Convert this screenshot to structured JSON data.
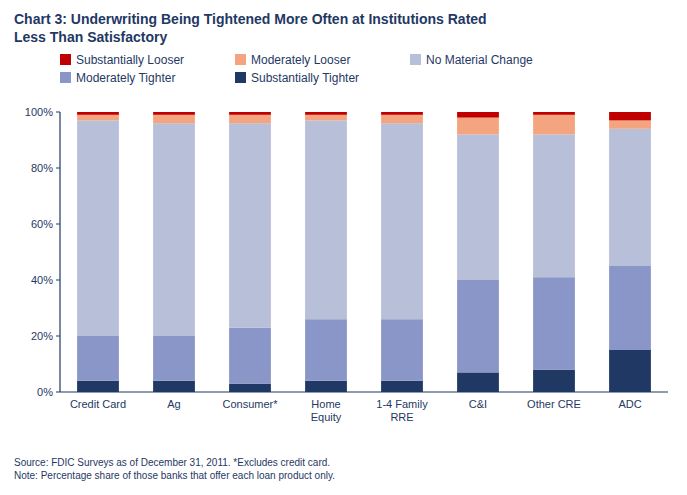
{
  "chart_data": {
    "type": "bar",
    "stacked": true,
    "title": "Chart 3:  Underwriting Being Tightened More Often at Institutions Rated\nLess Than Satisfactory",
    "categories": [
      "Credit Card",
      "Ag",
      "Consumer*",
      "Home\nEquity",
      "1-4 Family\nRRE",
      "C&I",
      "Other CRE",
      "ADC"
    ],
    "series": [
      {
        "name": "Substantially Looser",
        "color": "#c00000",
        "values": [
          1,
          1,
          1,
          1,
          1,
          2,
          1,
          3
        ]
      },
      {
        "name": "Moderately Looser",
        "color": "#f4a580",
        "values": [
          2,
          3,
          3,
          2,
          3,
          6,
          7,
          3
        ]
      },
      {
        "name": "No Material Change",
        "color": "#b8bfd8",
        "values": [
          77,
          76,
          73,
          71,
          70,
          52,
          51,
          49
        ]
      },
      {
        "name": "Moderately Tighter",
        "color": "#8b96c8",
        "values": [
          16,
          16,
          20,
          22,
          22,
          33,
          33,
          30
        ]
      },
      {
        "name": "Substantially Tighter",
        "color": "#1f3864",
        "values": [
          4,
          4,
          3,
          4,
          4,
          7,
          8,
          15
        ]
      }
    ],
    "ylim": [
      0,
      100
    ],
    "yticks": [
      {
        "value": 0,
        "label": "0%"
      },
      {
        "value": 20,
        "label": "20%"
      },
      {
        "value": 40,
        "label": "40%"
      },
      {
        "value": 60,
        "label": "60%"
      },
      {
        "value": 80,
        "label": "80%"
      },
      {
        "value": 100,
        "label": "100%"
      }
    ],
    "grid": false,
    "legend": "top",
    "annotations": [
      "Source:  FDIC Surveys as of December 31, 2011.  *Excludes credit card.\nNote:  Percentage share of those banks that offer each loan product only."
    ]
  }
}
